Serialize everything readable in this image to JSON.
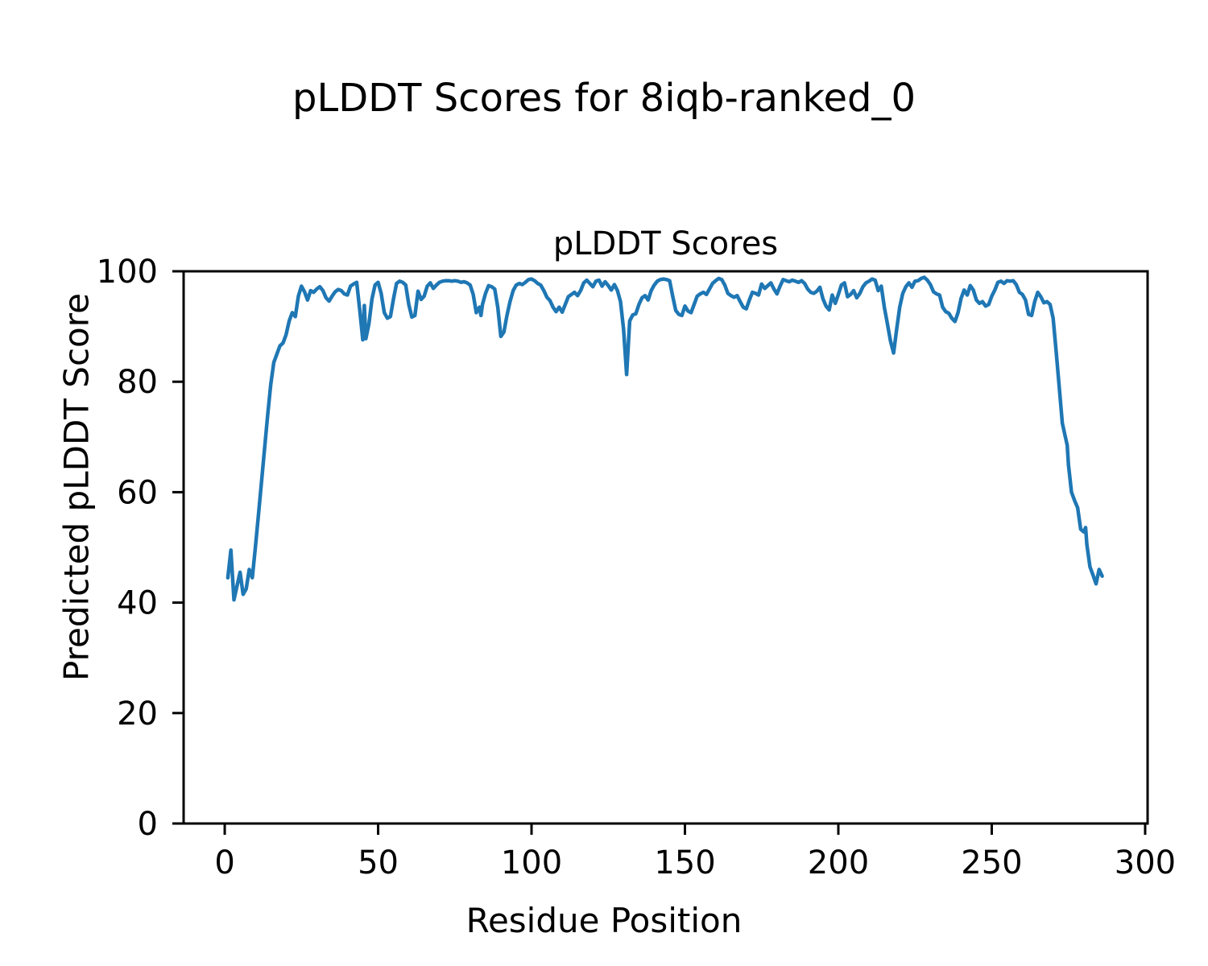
{
  "figure": {
    "suptitle": "pLDDT Scores for 8iqb-ranked_0",
    "axes_title": "pLDDT Scores",
    "background": "#ffffff",
    "text_color": "#000000"
  },
  "chart_data": {
    "type": "line",
    "title": "pLDDT Scores",
    "xlabel": "Residue Position",
    "ylabel": "Predicted pLDDT Score",
    "legend": null,
    "grid": false,
    "xlim": [
      -13.4,
      300.8
    ],
    "ylim": [
      0,
      100
    ],
    "x_ticks": [
      0,
      50,
      100,
      150,
      200,
      250,
      300
    ],
    "y_ticks": [
      0,
      20,
      40,
      60,
      80,
      100
    ],
    "line_color": "#1f77b4",
    "line_width": 4.5,
    "axis_color": "#000000",
    "series_name": "pLDDT",
    "points": [
      [
        1,
        44.5
      ],
      [
        2,
        49.5
      ],
      [
        3,
        40.5
      ],
      [
        4,
        43
      ],
      [
        5,
        45.5
      ],
      [
        6,
        41.5
      ],
      [
        7,
        42.5
      ],
      [
        8,
        46
      ],
      [
        9,
        44.5
      ],
      [
        10,
        50
      ],
      [
        11,
        56
      ],
      [
        12,
        62
      ],
      [
        13,
        68
      ],
      [
        14,
        74
      ],
      [
        15,
        79.5
      ],
      [
        16,
        83.5
      ],
      [
        17,
        85
      ],
      [
        18,
        86.5
      ],
      [
        19,
        87
      ],
      [
        20,
        88.5
      ],
      [
        21,
        91
      ],
      [
        22,
        92.5
      ],
      [
        23,
        91.8
      ],
      [
        24,
        95.5
      ],
      [
        25,
        97.3
      ],
      [
        26,
        96.3
      ],
      [
        27,
        94.8
      ],
      [
        28,
        96.5
      ],
      [
        29,
        96.2
      ],
      [
        30,
        96.8
      ],
      [
        31,
        97.2
      ],
      [
        32,
        96.5
      ],
      [
        33,
        95.2
      ],
      [
        34,
        94.6
      ],
      [
        35,
        95.5
      ],
      [
        36,
        96.3
      ],
      [
        37,
        96.7
      ],
      [
        38,
        96.5
      ],
      [
        39,
        95.9
      ],
      [
        40,
        95.7
      ],
      [
        41,
        97.3
      ],
      [
        42,
        97.7
      ],
      [
        43,
        98
      ],
      [
        44,
        93
      ],
      [
        45,
        87.6
      ],
      [
        45.5,
        93.8
      ],
      [
        46,
        87.8
      ],
      [
        47,
        90.5
      ],
      [
        48,
        95
      ],
      [
        49,
        97.5
      ],
      [
        50,
        98
      ],
      [
        51,
        96
      ],
      [
        52,
        92.5
      ],
      [
        53,
        91.5
      ],
      [
        54,
        91.8
      ],
      [
        55,
        95
      ],
      [
        56,
        97.8
      ],
      [
        57,
        98.2
      ],
      [
        58,
        98
      ],
      [
        59,
        97.5
      ],
      [
        60,
        94
      ],
      [
        61,
        91.7
      ],
      [
        62,
        92
      ],
      [
        63,
        96.4
      ],
      [
        64,
        94.9
      ],
      [
        65,
        95.5
      ],
      [
        66,
        97.3
      ],
      [
        67,
        97.9
      ],
      [
        68,
        96.9
      ],
      [
        69,
        97.5
      ],
      [
        70,
        98
      ],
      [
        71,
        98.2
      ],
      [
        72,
        98.3
      ],
      [
        73,
        98.3
      ],
      [
        74,
        98.2
      ],
      [
        75,
        98.3
      ],
      [
        76,
        98.2
      ],
      [
        77,
        98
      ],
      [
        78,
        98.1
      ],
      [
        79,
        97.9
      ],
      [
        80,
        97.5
      ],
      [
        81,
        95.8
      ],
      [
        82,
        92.5
      ],
      [
        83,
        93.5
      ],
      [
        83.5,
        92
      ],
      [
        84,
        94
      ],
      [
        85,
        96
      ],
      [
        86,
        97.4
      ],
      [
        87,
        97.2
      ],
      [
        88,
        96.8
      ],
      [
        89,
        93.5
      ],
      [
        90,
        88.2
      ],
      [
        91,
        89
      ],
      [
        92,
        92
      ],
      [
        93,
        94.5
      ],
      [
        94,
        96.5
      ],
      [
        95,
        97.5
      ],
      [
        96,
        97.8
      ],
      [
        97,
        97.6
      ],
      [
        98,
        98
      ],
      [
        99,
        98.5
      ],
      [
        100,
        98.6
      ],
      [
        101,
        98.3
      ],
      [
        102,
        97.8
      ],
      [
        103,
        97.5
      ],
      [
        104,
        96.5
      ],
      [
        105,
        95.3
      ],
      [
        106,
        94.7
      ],
      [
        107,
        93.5
      ],
      [
        108,
        92.7
      ],
      [
        109,
        93.5
      ],
      [
        110,
        92.6
      ],
      [
        111,
        94
      ],
      [
        112,
        95.4
      ],
      [
        113,
        95.8
      ],
      [
        114,
        96.2
      ],
      [
        115,
        95.6
      ],
      [
        116,
        96.5
      ],
      [
        117,
        97.9
      ],
      [
        118,
        98.4
      ],
      [
        119,
        97.8
      ],
      [
        120,
        97.2
      ],
      [
        121,
        98.2
      ],
      [
        122,
        98.4
      ],
      [
        123,
        97.3
      ],
      [
        124,
        98.1
      ],
      [
        125,
        97.4
      ],
      [
        126,
        96.6
      ],
      [
        127,
        97.6
      ],
      [
        128,
        96.5
      ],
      [
        129,
        94.5
      ],
      [
        130,
        89.5
      ],
      [
        131,
        81.3
      ],
      [
        132,
        91
      ],
      [
        133,
        92.1
      ],
      [
        134,
        92.3
      ],
      [
        135,
        94
      ],
      [
        136,
        95.2
      ],
      [
        137,
        95.6
      ],
      [
        138,
        94.8
      ],
      [
        139,
        96.5
      ],
      [
        140,
        97.5
      ],
      [
        141,
        98.2
      ],
      [
        142,
        98.5
      ],
      [
        143,
        98.6
      ],
      [
        144,
        98.5
      ],
      [
        145,
        98.3
      ],
      [
        146,
        95.5
      ],
      [
        147,
        92.9
      ],
      [
        148,
        92.2
      ],
      [
        149,
        92
      ],
      [
        150,
        93.7
      ],
      [
        151,
        92.8
      ],
      [
        152,
        92.5
      ],
      [
        153,
        94
      ],
      [
        154,
        95.5
      ],
      [
        155,
        95.9
      ],
      [
        156,
        96.2
      ],
      [
        157,
        95.8
      ],
      [
        158,
        96.8
      ],
      [
        159,
        97.8
      ],
      [
        160,
        98.3
      ],
      [
        161,
        98.7
      ],
      [
        162,
        98.5
      ],
      [
        163,
        97.5
      ],
      [
        164,
        96
      ],
      [
        165,
        95.6
      ],
      [
        166,
        95.3
      ],
      [
        167,
        95.6
      ],
      [
        168,
        94.5
      ],
      [
        169,
        93.5
      ],
      [
        170,
        93.2
      ],
      [
        171,
        94.8
      ],
      [
        172,
        96.2
      ],
      [
        173,
        96
      ],
      [
        174,
        95.7
      ],
      [
        175,
        97.7
      ],
      [
        176,
        96.9
      ],
      [
        177,
        97.4
      ],
      [
        178,
        97.9
      ],
      [
        179,
        96.8
      ],
      [
        180,
        95.9
      ],
      [
        181,
        97.3
      ],
      [
        182,
        98.5
      ],
      [
        183,
        98.3
      ],
      [
        184,
        98.1
      ],
      [
        185,
        98.4
      ],
      [
        186,
        98.2
      ],
      [
        187,
        98
      ],
      [
        188,
        98.3
      ],
      [
        189,
        97.8
      ],
      [
        190,
        96.8
      ],
      [
        191,
        96.2
      ],
      [
        192,
        96
      ],
      [
        193,
        96.4
      ],
      [
        194,
        97.1
      ],
      [
        195,
        95
      ],
      [
        196,
        93.7
      ],
      [
        197,
        93
      ],
      [
        198,
        95.7
      ],
      [
        199,
        94.2
      ],
      [
        200,
        95.8
      ],
      [
        201,
        97.5
      ],
      [
        202,
        97.9
      ],
      [
        203,
        95.4
      ],
      [
        204,
        95.8
      ],
      [
        205,
        96.5
      ],
      [
        206,
        95.2
      ],
      [
        207,
        96
      ],
      [
        208,
        97.2
      ],
      [
        209,
        97.9
      ],
      [
        210,
        98.2
      ],
      [
        211,
        98.6
      ],
      [
        212,
        98.4
      ],
      [
        213,
        96.5
      ],
      [
        214,
        97.3
      ],
      [
        215,
        93.5
      ],
      [
        216,
        90.5
      ],
      [
        217,
        87.4
      ],
      [
        218,
        85.2
      ],
      [
        219,
        89.5
      ],
      [
        220,
        93.5
      ],
      [
        221,
        96
      ],
      [
        222,
        97.2
      ],
      [
        223,
        97.9
      ],
      [
        224,
        97.1
      ],
      [
        225,
        98.2
      ],
      [
        226,
        98.3
      ],
      [
        227,
        98.7
      ],
      [
        228,
        98.9
      ],
      [
        229,
        98.4
      ],
      [
        230,
        97.6
      ],
      [
        231,
        96.3
      ],
      [
        232,
        95.9
      ],
      [
        233,
        95.7
      ],
      [
        234,
        93.5
      ],
      [
        235,
        92.7
      ],
      [
        236,
        92.4
      ],
      [
        237,
        91.5
      ],
      [
        238,
        90.9
      ],
      [
        239,
        92.5
      ],
      [
        240,
        95.1
      ],
      [
        241,
        96.6
      ],
      [
        242,
        95.7
      ],
      [
        243,
        97.4
      ],
      [
        244,
        96.6
      ],
      [
        245,
        94.8
      ],
      [
        246,
        94.2
      ],
      [
        247,
        94.5
      ],
      [
        248,
        93.7
      ],
      [
        249,
        94
      ],
      [
        250,
        95.5
      ],
      [
        251,
        96.6
      ],
      [
        252,
        98
      ],
      [
        253,
        98.2
      ],
      [
        254,
        97.8
      ],
      [
        255,
        98.3
      ],
      [
        256,
        98.2
      ],
      [
        257,
        98.3
      ],
      [
        258,
        97.6
      ],
      [
        259,
        96.2
      ],
      [
        260,
        95.8
      ],
      [
        261,
        94.8
      ],
      [
        262,
        92.2
      ],
      [
        263,
        92
      ],
      [
        264,
        94.5
      ],
      [
        265,
        96.2
      ],
      [
        266,
        95.4
      ],
      [
        267,
        94.3
      ],
      [
        268,
        94.5
      ],
      [
        269,
        94
      ],
      [
        270,
        91.5
      ],
      [
        271,
        85.4
      ],
      [
        272,
        79
      ],
      [
        273,
        72.5
      ],
      [
        274,
        70
      ],
      [
        274.6,
        68.5
      ],
      [
        275,
        65
      ],
      [
        276,
        60
      ],
      [
        277,
        58.5
      ],
      [
        278,
        57.2
      ],
      [
        279,
        53.3
      ],
      [
        280,
        52.8
      ],
      [
        280.6,
        53.6
      ],
      [
        281,
        50.5
      ],
      [
        282,
        46.5
      ],
      [
        283,
        45
      ],
      [
        284,
        43.4
      ],
      [
        285,
        46
      ],
      [
        286,
        44.8
      ]
    ]
  }
}
